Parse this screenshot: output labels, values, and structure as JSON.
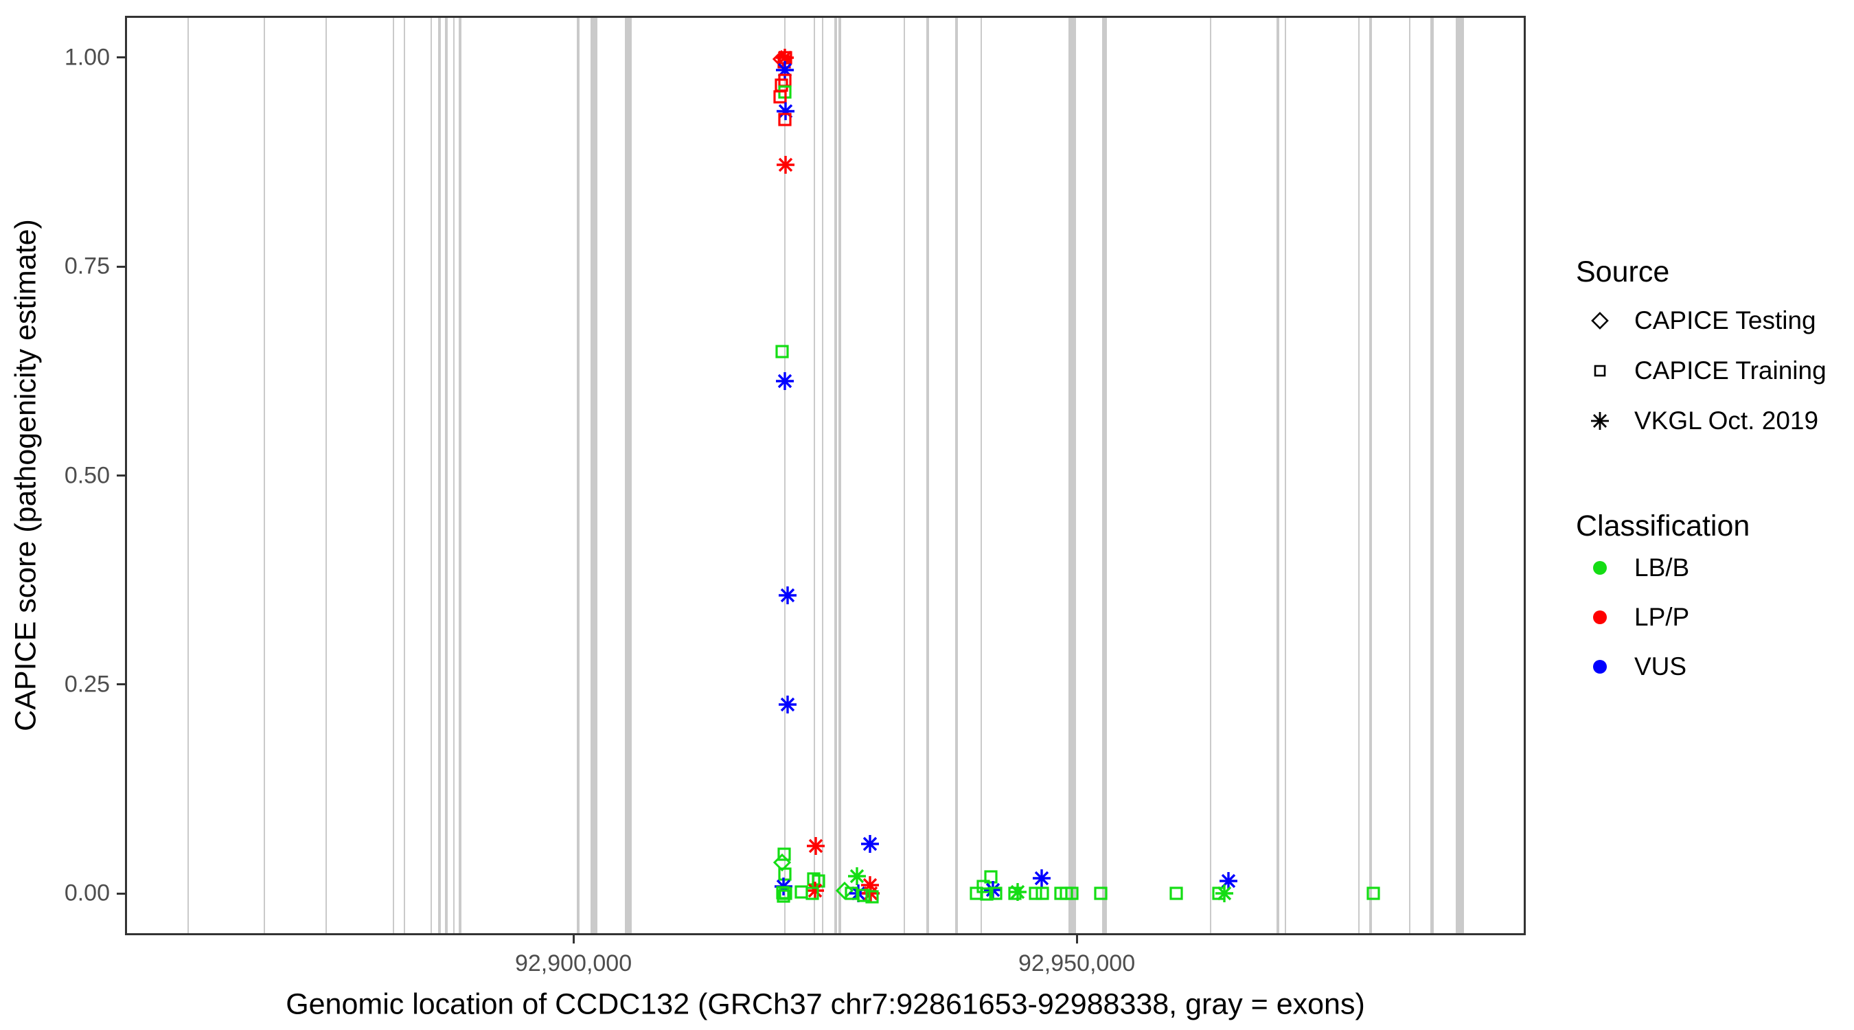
{
  "figure": {
    "x_axis": {
      "title": "Genomic location of CCDC132 (GRCh37 chr7:92861653-92988338, gray = exons)",
      "tick_labels": [
        "92,900,000",
        "92,950,000"
      ]
    },
    "y_axis": {
      "title": "CAPICE score (pathogenicity estimate)",
      "tick_labels": [
        "1.00",
        "0.75",
        "0.50",
        "0.25",
        "0.00"
      ]
    },
    "legend": {
      "source": {
        "title": "Source",
        "items": [
          {
            "shape": "diamond",
            "label": "CAPICE Testing"
          },
          {
            "shape": "square",
            "label": "CAPICE Training"
          },
          {
            "shape": "asterisk",
            "label": "VKGL Oct. 2019"
          }
        ]
      },
      "classification": {
        "title": "Classification",
        "items": [
          {
            "color": "#14dd14",
            "label": "LB/B"
          },
          {
            "color": "#ff0000",
            "label": "LP/P"
          },
          {
            "color": "#0000ff",
            "label": "VUS"
          }
        ]
      }
    }
  },
  "chart_data": {
    "type": "scatter",
    "title": "",
    "xlabel": "Genomic location of CCDC132 (GRCh37 chr7:92861653-92988338, gray = exons)",
    "ylabel": "CAPICE score (pathogenicity estimate)",
    "xlim": [
      92855455,
      92994608
    ],
    "ylim": [
      -0.05,
      1.05
    ],
    "x_ticks": [
      92900000,
      92950000
    ],
    "y_ticks": [
      1.0,
      0.75,
      0.5,
      0.25,
      0.0
    ],
    "grid": false,
    "legend_position": "right",
    "colors": {
      "LB/B": "#14dd14",
      "LP/P": "#ff0000",
      "VUS": "#0000ff"
    },
    "shape_map": {
      "CAPICE Testing": "diamond",
      "CAPICE Training": "square",
      "VKGL Oct. 2019": "asterisk"
    },
    "exon_color": "#cacaca",
    "exons": [
      {
        "start": 92861660,
        "end": 92861800
      },
      {
        "start": 92869230,
        "end": 92869370
      },
      {
        "start": 92875370,
        "end": 92875510
      },
      {
        "start": 92882060,
        "end": 92882190
      },
      {
        "start": 92883150,
        "end": 92883290
      },
      {
        "start": 92885810,
        "end": 92885950
      },
      {
        "start": 92886560,
        "end": 92886830
      },
      {
        "start": 92887240,
        "end": 92887510
      },
      {
        "start": 92888030,
        "end": 92888230
      },
      {
        "start": 92888610,
        "end": 92888880
      },
      {
        "start": 92900370,
        "end": 92900580
      },
      {
        "start": 92901700,
        "end": 92902390
      },
      {
        "start": 92905110,
        "end": 92905800
      },
      {
        "start": 92920940,
        "end": 92921080
      },
      {
        "start": 92923870,
        "end": 92924010
      },
      {
        "start": 92924690,
        "end": 92924830
      },
      {
        "start": 92925920,
        "end": 92926190
      },
      {
        "start": 92926350,
        "end": 92926620
      },
      {
        "start": 92932810,
        "end": 92932940
      },
      {
        "start": 92935060,
        "end": 92935330
      },
      {
        "start": 92937920,
        "end": 92938200
      },
      {
        "start": 92940450,
        "end": 92940580
      },
      {
        "start": 92949210,
        "end": 92949960
      },
      {
        "start": 92952490,
        "end": 92952970
      },
      {
        "start": 92963230,
        "end": 92963370
      },
      {
        "start": 92969850,
        "end": 92970120
      },
      {
        "start": 92970670,
        "end": 92970800
      },
      {
        "start": 92977970,
        "end": 92978100
      },
      {
        "start": 92979060,
        "end": 92979330
      },
      {
        "start": 92983010,
        "end": 92983150
      },
      {
        "start": 92985160,
        "end": 92985500
      },
      {
        "start": 92987650,
        "end": 92988470
      }
    ],
    "points": [
      {
        "pos": 92921000,
        "score": 1.0,
        "shape": "asterisk",
        "cls": "LP/P"
      },
      {
        "pos": 92921060,
        "score": 1.0,
        "shape": "square",
        "cls": "LP/P"
      },
      {
        "pos": 92920700,
        "score": 0.998,
        "shape": "diamond",
        "cls": "LP/P"
      },
      {
        "pos": 92920950,
        "score": 0.995,
        "shape": "square",
        "cls": "LP/P"
      },
      {
        "pos": 92921000,
        "score": 0.985,
        "shape": "asterisk",
        "cls": "VUS"
      },
      {
        "pos": 92921000,
        "score": 0.973,
        "shape": "square",
        "cls": "LP/P"
      },
      {
        "pos": 92920660,
        "score": 0.967,
        "shape": "square",
        "cls": "LP/P"
      },
      {
        "pos": 92921000,
        "score": 0.959,
        "shape": "square",
        "cls": "LB/B"
      },
      {
        "pos": 92920520,
        "score": 0.953,
        "shape": "square",
        "cls": "LP/P"
      },
      {
        "pos": 92921070,
        "score": 0.936,
        "shape": "asterisk",
        "cls": "VUS"
      },
      {
        "pos": 92921000,
        "score": 0.926,
        "shape": "square",
        "cls": "LP/P"
      },
      {
        "pos": 92921070,
        "score": 0.872,
        "shape": "asterisk",
        "cls": "LP/P"
      },
      {
        "pos": 92920730,
        "score": 0.648,
        "shape": "square",
        "cls": "LB/B"
      },
      {
        "pos": 92921000,
        "score": 0.613,
        "shape": "asterisk",
        "cls": "VUS"
      },
      {
        "pos": 92921300,
        "score": 0.357,
        "shape": "asterisk",
        "cls": "VUS"
      },
      {
        "pos": 92921300,
        "score": 0.226,
        "shape": "asterisk",
        "cls": "VUS"
      },
      {
        "pos": 92920930,
        "score": 0.047,
        "shape": "square",
        "cls": "LB/B"
      },
      {
        "pos": 92920730,
        "score": 0.037,
        "shape": "diamond",
        "cls": "LB/B"
      },
      {
        "pos": 92921000,
        "score": 0.023,
        "shape": "square",
        "cls": "LB/B"
      },
      {
        "pos": 92920870,
        "score": 0.008,
        "shape": "asterisk",
        "cls": "VUS"
      },
      {
        "pos": 92920800,
        "score": 0.001,
        "shape": "square",
        "cls": "LB/B"
      },
      {
        "pos": 92920900,
        "score": -0.003,
        "shape": "square",
        "cls": "LB/B"
      },
      {
        "pos": 92921070,
        "score": 0.0,
        "shape": "square",
        "cls": "LB/B"
      },
      {
        "pos": 92922640,
        "score": 0.002,
        "shape": "square",
        "cls": "LB/B"
      },
      {
        "pos": 92924080,
        "score": 0.057,
        "shape": "asterisk",
        "cls": "LP/P"
      },
      {
        "pos": 92923870,
        "score": 0.017,
        "shape": "square",
        "cls": "LB/B"
      },
      {
        "pos": 92924350,
        "score": 0.015,
        "shape": "square",
        "cls": "LB/B"
      },
      {
        "pos": 92924010,
        "score": 0.003,
        "shape": "asterisk",
        "cls": "LP/P"
      },
      {
        "pos": 92923730,
        "score": 0.0,
        "shape": "square",
        "cls": "LB/B"
      },
      {
        "pos": 92929460,
        "score": 0.059,
        "shape": "asterisk",
        "cls": "VUS"
      },
      {
        "pos": 92928170,
        "score": 0.021,
        "shape": "asterisk",
        "cls": "LB/B"
      },
      {
        "pos": 92926940,
        "score": 0.003,
        "shape": "diamond",
        "cls": "LB/B"
      },
      {
        "pos": 92928300,
        "score": 0.0,
        "shape": "asterisk",
        "cls": "VUS"
      },
      {
        "pos": 92929460,
        "score": 0.01,
        "shape": "asterisk",
        "cls": "LP/P"
      },
      {
        "pos": 92929530,
        "score": 0.0,
        "shape": "asterisk",
        "cls": "LP/P"
      },
      {
        "pos": 92927620,
        "score": 0.0,
        "shape": "square",
        "cls": "LB/B"
      },
      {
        "pos": 92928850,
        "score": -0.002,
        "shape": "square",
        "cls": "LB/B"
      },
      {
        "pos": 92929670,
        "score": -0.004,
        "shape": "square",
        "cls": "LB/B"
      },
      {
        "pos": 92941470,
        "score": 0.02,
        "shape": "square",
        "cls": "LB/B"
      },
      {
        "pos": 92940720,
        "score": 0.008,
        "shape": "square",
        "cls": "LB/B"
      },
      {
        "pos": 92941670,
        "score": 0.004,
        "shape": "asterisk",
        "cls": "VUS"
      },
      {
        "pos": 92940040,
        "score": 0.0,
        "shape": "square",
        "cls": "LB/B"
      },
      {
        "pos": 92941060,
        "score": -0.001,
        "shape": "square",
        "cls": "LB/B"
      },
      {
        "pos": 92941950,
        "score": 0.0,
        "shape": "square",
        "cls": "LB/B"
      },
      {
        "pos": 92944130,
        "score": 0.002,
        "shape": "asterisk",
        "cls": "LB/B"
      },
      {
        "pos": 92943860,
        "score": 0.0,
        "shape": "square",
        "cls": "LB/B"
      },
      {
        "pos": 92946520,
        "score": 0.018,
        "shape": "asterisk",
        "cls": "VUS"
      },
      {
        "pos": 92945900,
        "score": 0.0,
        "shape": "square",
        "cls": "LB/B"
      },
      {
        "pos": 92946580,
        "score": 0.0,
        "shape": "square",
        "cls": "LB/B"
      },
      {
        "pos": 92948430,
        "score": 0.0,
        "shape": "square",
        "cls": "LB/B"
      },
      {
        "pos": 92948980,
        "score": 0.0,
        "shape": "square",
        "cls": "LB/B"
      },
      {
        "pos": 92949520,
        "score": 0.0,
        "shape": "square",
        "cls": "LB/B"
      },
      {
        "pos": 92952380,
        "score": 0.0,
        "shape": "square",
        "cls": "LB/B"
      },
      {
        "pos": 92959880,
        "score": 0.0,
        "shape": "square",
        "cls": "LB/B"
      },
      {
        "pos": 92965070,
        "score": 0.015,
        "shape": "asterisk",
        "cls": "VUS"
      },
      {
        "pos": 92964660,
        "score": 0.0,
        "shape": "asterisk",
        "cls": "LB/B"
      },
      {
        "pos": 92964120,
        "score": 0.0,
        "shape": "square",
        "cls": "LB/B"
      },
      {
        "pos": 92979460,
        "score": 0.0,
        "shape": "square",
        "cls": "LB/B"
      }
    ]
  }
}
